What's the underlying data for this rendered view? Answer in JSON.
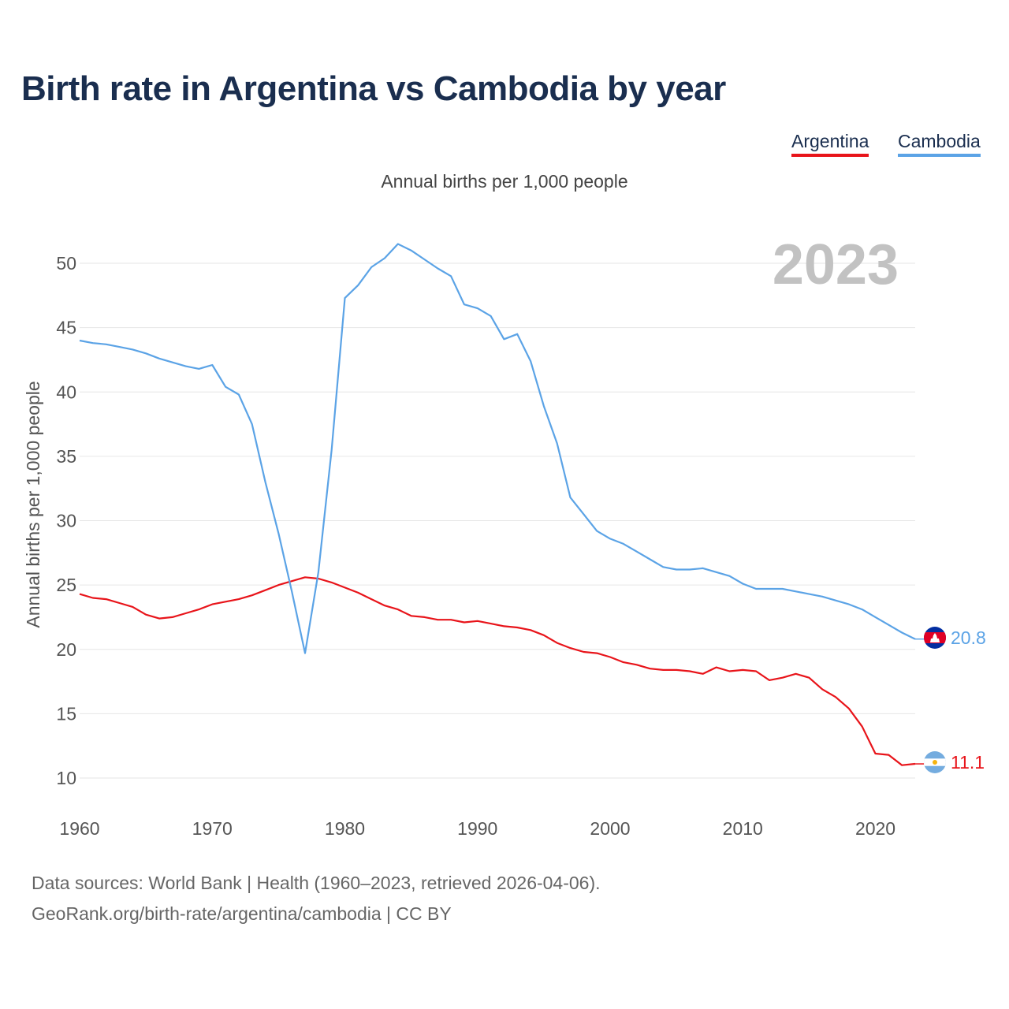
{
  "title": "Birth rate in Argentina vs Cambodia by year",
  "subtitle": "Annual births per 1,000 people",
  "year_label": "2023",
  "footer": {
    "source": "Data sources: World Bank | Health (1960–2023, retrieved 2026-04-06).",
    "credit": "GeoRank.org/birth-rate/argentina/cambodia | CC BY"
  },
  "chart_data": {
    "type": "line",
    "title": "Birth rate in Argentina vs Cambodia by year",
    "subtitle": "Annual births per 1,000 people",
    "xlabel": "",
    "ylabel": "Annual births per 1,000 people",
    "xlim": [
      1960,
      2023
    ],
    "ylim": [
      9,
      52
    ],
    "grid": true,
    "legend_position": "top-right",
    "x_ticks": [
      1960,
      1970,
      1980,
      1990,
      2000,
      2010,
      2020
    ],
    "y_ticks": [
      10,
      15,
      20,
      25,
      30,
      35,
      40,
      45,
      50
    ],
    "x": [
      1960,
      1961,
      1962,
      1963,
      1964,
      1965,
      1966,
      1967,
      1968,
      1969,
      1970,
      1971,
      1972,
      1973,
      1974,
      1975,
      1976,
      1977,
      1978,
      1979,
      1980,
      1981,
      1982,
      1983,
      1984,
      1985,
      1986,
      1987,
      1988,
      1989,
      1990,
      1991,
      1992,
      1993,
      1994,
      1995,
      1996,
      1997,
      1998,
      1999,
      2000,
      2001,
      2002,
      2003,
      2004,
      2005,
      2006,
      2007,
      2008,
      2009,
      2010,
      2011,
      2012,
      2013,
      2014,
      2015,
      2016,
      2017,
      2018,
      2019,
      2020,
      2021,
      2022,
      2023
    ],
    "series": [
      {
        "name": "Argentina",
        "color": "#e8141a",
        "end_label": "11.1",
        "values": [
          24.3,
          24.0,
          23.9,
          23.6,
          23.3,
          22.7,
          22.4,
          22.5,
          22.8,
          23.1,
          23.5,
          23.7,
          23.9,
          24.2,
          24.6,
          25.0,
          25.3,
          25.6,
          25.5,
          25.2,
          24.8,
          24.4,
          23.9,
          23.4,
          23.1,
          22.6,
          22.5,
          22.3,
          22.3,
          22.1,
          22.2,
          22.0,
          21.8,
          21.7,
          21.5,
          21.1,
          20.5,
          20.1,
          19.8,
          19.7,
          19.4,
          19.0,
          18.8,
          18.5,
          18.4,
          18.4,
          18.3,
          18.1,
          18.6,
          18.3,
          18.4,
          18.3,
          17.6,
          17.8,
          18.1,
          17.8,
          16.9,
          16.3,
          15.4,
          14.0,
          11.9,
          11.8,
          11.0,
          11.1
        ]
      },
      {
        "name": "Cambodia",
        "color": "#5ba3e6",
        "end_label": "20.8",
        "values": [
          44.0,
          43.8,
          43.7,
          43.5,
          43.3,
          43.0,
          42.6,
          42.3,
          42.0,
          41.8,
          42.1,
          40.4,
          39.8,
          37.5,
          33.0,
          29.0,
          24.5,
          19.7,
          26.0,
          35.5,
          47.3,
          48.3,
          49.7,
          50.4,
          51.5,
          51.0,
          50.3,
          49.6,
          49.0,
          46.8,
          46.5,
          45.9,
          44.1,
          44.5,
          42.4,
          38.9,
          36.0,
          31.8,
          30.5,
          29.2,
          28.6,
          28.2,
          27.6,
          27.0,
          26.4,
          26.2,
          26.2,
          26.3,
          26.0,
          25.7,
          25.1,
          24.7,
          24.7,
          24.7,
          24.5,
          24.3,
          24.1,
          23.8,
          23.5,
          23.1,
          22.5,
          21.9,
          21.3,
          20.8
        ]
      }
    ]
  }
}
